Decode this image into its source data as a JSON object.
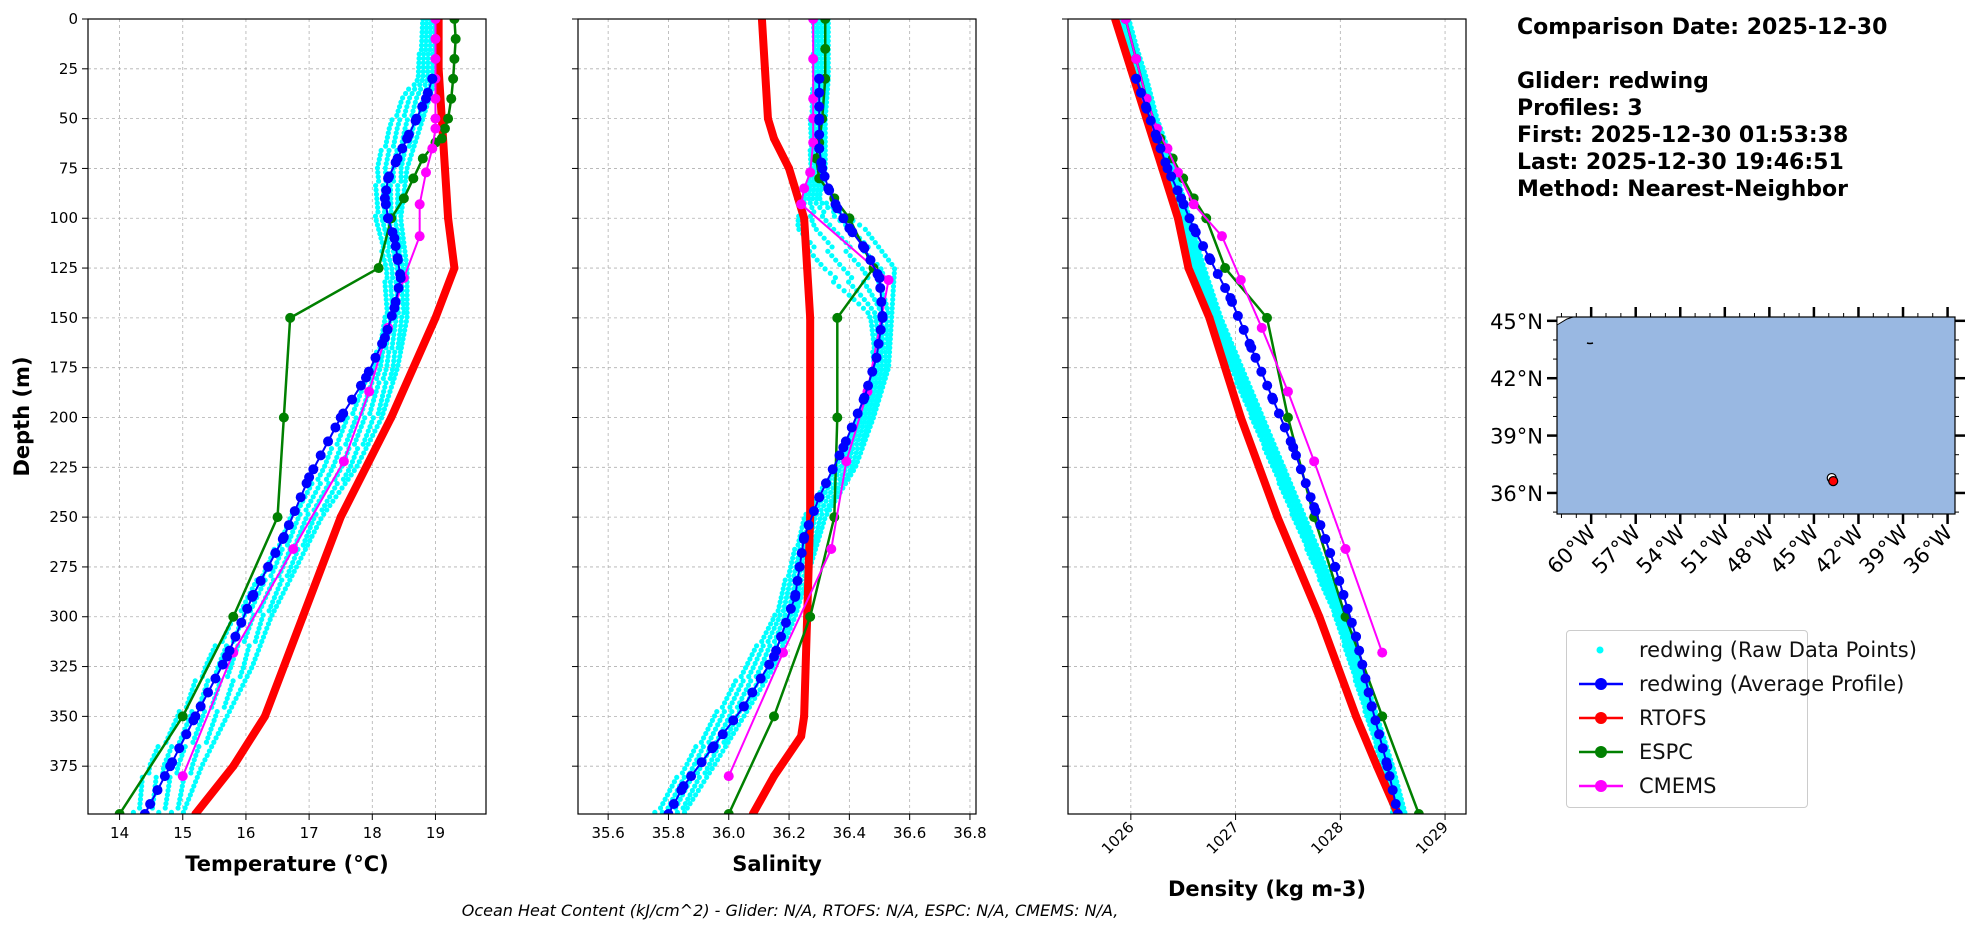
{
  "info": {
    "comparison_date": "Comparison Date: 2025-12-30",
    "glider": "Glider: redwing",
    "profiles": "Profiles: 3",
    "first": "First: 2025-12-30 01:53:38",
    "last": "Last: 2025-12-30 19:46:51",
    "method": "Method: Nearest-Neighbor"
  },
  "footer": "Ocean Heat Content (kJ/cm^2) - Glider: N/A,  RTOFS: N/A,  ESPC: N/A,  CMEMS: N/A,",
  "colors": {
    "raw": "#00ffff",
    "average": "#0000ff",
    "rtofs": "#ff0000",
    "espc": "#008000",
    "cmems": "#ff00ff",
    "ocean": "#99b8e2",
    "grid": "#b0b0b0"
  },
  "legend": [
    {
      "key": "raw",
      "label": "redwing (Raw Data Points)",
      "style": "dot"
    },
    {
      "key": "average",
      "label": "redwing (Average Profile)",
      "style": "line-marker"
    },
    {
      "key": "rtofs",
      "label": "RTOFS",
      "style": "line-marker"
    },
    {
      "key": "espc",
      "label": "ESPC",
      "style": "line-marker"
    },
    {
      "key": "cmems",
      "label": "CMEMS",
      "style": "line-marker"
    }
  ],
  "chart_data": [
    {
      "type": "line",
      "xlabel": "Temperature (°C)",
      "ylabel": "Depth (m)",
      "xlim": [
        13.5,
        19.8
      ],
      "ylim": [
        399,
        0
      ],
      "xticks": [
        14,
        15,
        16,
        17,
        18,
        19
      ],
      "yticks": [
        0,
        25,
        50,
        75,
        100,
        125,
        150,
        175,
        200,
        225,
        250,
        275,
        300,
        325,
        350,
        375
      ],
      "grid": true,
      "series": [
        {
          "name": "RTOFS",
          "key": "rtofs",
          "width": 8,
          "marker_r": 4,
          "x": [
            19.05,
            19.05,
            19.1,
            19.15,
            19.2,
            19.3,
            19.0,
            18.3,
            17.5,
            16.9,
            16.3,
            15.8,
            15.2
          ],
          "y": [
            0,
            25,
            50,
            75,
            100,
            125,
            150,
            200,
            250,
            300,
            350,
            375,
            399
          ]
        },
        {
          "name": "ESPC",
          "key": "espc",
          "width": 2.5,
          "marker_r": 5,
          "x": [
            19.3,
            19.32,
            19.3,
            19.28,
            19.25,
            19.2,
            19.15,
            19.1,
            19.0,
            18.8,
            18.65,
            18.5,
            18.3,
            18.1,
            16.7,
            16.6,
            16.5,
            15.8,
            15.0,
            14.0
          ],
          "y": [
            0,
            10,
            20,
            30,
            40,
            50,
            55,
            60,
            62,
            70,
            80,
            90,
            100,
            125,
            150,
            200,
            250,
            300,
            350,
            399
          ]
        },
        {
          "name": "CMEMS",
          "key": "cmems",
          "width": 2,
          "marker_r": 5,
          "x": [
            19.0,
            19.0,
            19.0,
            19.0,
            19.0,
            19.0,
            19.0,
            18.95,
            18.85,
            18.75,
            18.75,
            18.5,
            18.25,
            17.95,
            17.55,
            16.75,
            15.8,
            15.0
          ],
          "y": [
            0,
            10,
            20,
            30,
            40,
            50,
            55,
            65,
            77,
            93,
            109,
            130,
            155,
            187,
            222,
            266,
            318,
            380
          ]
        },
        {
          "name": "redwing (Average Profile)",
          "key": "average",
          "width": 2,
          "marker_r": 5,
          "x": [
            18.95,
            18.85,
            18.7,
            18.55,
            18.4,
            18.25,
            18.2,
            18.25,
            18.35,
            18.4,
            18.45,
            18.35,
            18.2,
            17.9,
            17.5,
            17.0,
            16.6,
            16.1,
            15.7,
            15.2,
            14.8,
            14.4
          ],
          "y": [
            30,
            40,
            50,
            60,
            70,
            80,
            90,
            100,
            110,
            120,
            130,
            145,
            160,
            180,
            200,
            230,
            260,
            290,
            320,
            350,
            375,
            399
          ]
        }
      ],
      "raw": {
        "name": "redwing (Raw Data Points)",
        "key": "raw",
        "x_lo": [
          18.8,
          18.7,
          18.45,
          18.25,
          18.05,
          18.05,
          18.2,
          18.2,
          18.0,
          17.6,
          17.2,
          16.7,
          16.3,
          15.8,
          15.3,
          14.9,
          14.4,
          14.2
        ],
        "x_hi": [
          19.05,
          19.0,
          18.9,
          18.75,
          18.55,
          18.45,
          18.55,
          18.55,
          18.4,
          18.15,
          17.75,
          17.2,
          16.8,
          16.4,
          16.1,
          15.7,
          15.3,
          15.0
        ],
        "y": [
          0,
          30,
          40,
          55,
          75,
          100,
          125,
          150,
          175,
          200,
          225,
          250,
          275,
          300,
          325,
          350,
          375,
          399
        ],
        "top_x": [
          18.8,
          18.9
        ]
      }
    },
    {
      "type": "line",
      "xlabel": "Salinity",
      "ylabel": "",
      "xlim": [
        35.5,
        36.82
      ],
      "ylim": [
        399,
        0
      ],
      "xticks": [
        35.6,
        35.8,
        36.0,
        36.2,
        36.4,
        36.6,
        36.8
      ],
      "xticklabels": [
        "35.6",
        "35.8",
        "36.0",
        "36.2",
        "36.4",
        "36.6",
        "36.8"
      ],
      "grid": true,
      "series": [
        {
          "name": "RTOFS",
          "key": "rtofs",
          "width": 8,
          "marker_r": 4,
          "x": [
            36.11,
            36.12,
            36.13,
            36.15,
            36.2,
            36.23,
            36.25,
            36.26,
            36.27,
            36.27,
            36.27,
            36.26,
            36.25,
            36.24,
            36.15,
            36.08
          ],
          "y": [
            0,
            25,
            50,
            60,
            75,
            90,
            100,
            125,
            150,
            200,
            250,
            300,
            350,
            360,
            380,
            399
          ]
        },
        {
          "name": "ESPC",
          "key": "espc",
          "width": 2.5,
          "marker_r": 5,
          "x": [
            36.32,
            36.32,
            36.32,
            36.31,
            36.3,
            36.29,
            36.3,
            36.35,
            36.4,
            36.48,
            36.36,
            36.36,
            36.35,
            36.27,
            36.15,
            36.0
          ],
          "y": [
            0,
            15,
            30,
            50,
            62,
            70,
            80,
            90,
            100,
            125,
            150,
            200,
            250,
            300,
            350,
            399
          ]
        },
        {
          "name": "CMEMS",
          "key": "cmems",
          "width": 2,
          "marker_r": 5,
          "x": [
            36.28,
            36.28,
            36.28,
            36.28,
            36.28,
            36.27,
            36.25,
            36.24,
            36.53,
            36.46,
            36.39,
            36.34,
            36.18,
            36.0
          ],
          "y": [
            0,
            20,
            40,
            50,
            62,
            77,
            85,
            93,
            131,
            187,
            222,
            266,
            318,
            380
          ]
        },
        {
          "name": "redwing (Average Profile)",
          "key": "average",
          "width": 2,
          "marker_r": 5,
          "x": [
            36.3,
            36.3,
            36.3,
            36.31,
            36.33,
            36.36,
            36.4,
            36.45,
            36.5,
            36.51,
            36.49,
            36.45,
            36.38,
            36.3,
            36.25,
            36.22,
            36.15,
            36.05,
            35.95,
            35.85,
            35.8
          ],
          "y": [
            30,
            50,
            65,
            75,
            85,
            95,
            105,
            115,
            130,
            150,
            170,
            190,
            215,
            240,
            260,
            290,
            320,
            345,
            365,
            385,
            399
          ]
        }
      ],
      "raw": {
        "name": "redwing (Raw Data Points)",
        "key": "raw",
        "x_lo": [
          36.28,
          36.28,
          36.27,
          36.27,
          36.25,
          36.22,
          36.3,
          36.47,
          36.48,
          36.43,
          36.35,
          36.25,
          36.2,
          36.15,
          36.05,
          35.95,
          35.85,
          35.75
        ],
        "x_hi": [
          36.33,
          36.33,
          36.32,
          36.32,
          36.3,
          36.45,
          36.55,
          36.54,
          36.53,
          36.48,
          36.42,
          36.32,
          36.27,
          36.22,
          36.15,
          36.05,
          35.95,
          35.85
        ],
        "y": [
          0,
          30,
          50,
          75,
          90,
          105,
          125,
          150,
          175,
          200,
          225,
          250,
          275,
          300,
          325,
          350,
          375,
          399
        ],
        "top_x": [
          36.28,
          36.33
        ]
      }
    },
    {
      "type": "line",
      "xlabel": "Density (kg m-3)",
      "ylabel": "",
      "xlim": [
        1025.4,
        1029.2
      ],
      "ylim": [
        399,
        0
      ],
      "xticks": [
        1026,
        1027,
        1028,
        1029
      ],
      "grid": true,
      "series": [
        {
          "name": "RTOFS",
          "key": "rtofs",
          "width": 8,
          "marker_r": 4,
          "x": [
            1025.85,
            1026.0,
            1026.15,
            1026.3,
            1026.45,
            1026.55,
            1026.75,
            1027.05,
            1027.4,
            1027.8,
            1028.15,
            1028.35,
            1028.55
          ],
          "y": [
            0,
            25,
            50,
            75,
            100,
            125,
            150,
            200,
            250,
            300,
            350,
            375,
            399
          ]
        },
        {
          "name": "ESPC",
          "key": "espc",
          "width": 2.5,
          "marker_r": 5,
          "x": [
            1025.95,
            1026.05,
            1026.15,
            1026.28,
            1026.4,
            1026.5,
            1026.6,
            1026.72,
            1026.9,
            1027.3,
            1027.5,
            1027.75,
            1028.05,
            1028.4,
            1028.75
          ],
          "y": [
            0,
            20,
            40,
            60,
            70,
            80,
            90,
            100,
            125,
            150,
            200,
            250,
            300,
            350,
            399
          ]
        },
        {
          "name": "CMEMS",
          "key": "cmems",
          "width": 2,
          "marker_r": 5,
          "x": [
            1025.95,
            1026.05,
            1026.15,
            1026.25,
            1026.35,
            1026.45,
            1026.6,
            1026.87,
            1027.05,
            1027.25,
            1027.5,
            1027.75,
            1028.05,
            1028.4
          ],
          "y": [
            0,
            20,
            40,
            55,
            65,
            77,
            93,
            109,
            131,
            155,
            187,
            222,
            266,
            318
          ]
        },
        {
          "name": "redwing (Average Profile)",
          "key": "average",
          "width": 2,
          "marker_r": 5,
          "x": [
            1026.05,
            1026.15,
            1026.25,
            1026.35,
            1026.48,
            1026.6,
            1026.75,
            1026.95,
            1027.15,
            1027.35,
            1027.55,
            1027.75,
            1027.95,
            1028.15,
            1028.3,
            1028.45,
            1028.55
          ],
          "y": [
            30,
            45,
            60,
            75,
            90,
            105,
            120,
            140,
            165,
            190,
            215,
            245,
            275,
            310,
            345,
            375,
            399
          ]
        }
      ],
      "raw": {
        "name": "redwing (Raw Data Points)",
        "key": "raw",
        "x_lo": [
          1025.9,
          1025.98,
          1026.05,
          1026.15,
          1026.3,
          1026.45,
          1026.6,
          1026.75,
          1026.95,
          1027.15,
          1027.35,
          1027.55,
          1027.75,
          1027.95,
          1028.1,
          1028.25,
          1028.4,
          1028.5
        ],
        "x_hi": [
          1025.98,
          1026.06,
          1026.15,
          1026.25,
          1026.42,
          1026.56,
          1026.7,
          1026.86,
          1027.06,
          1027.26,
          1027.46,
          1027.66,
          1027.86,
          1028.05,
          1028.2,
          1028.35,
          1028.5,
          1028.62
        ],
        "y": [
          0,
          15,
          30,
          50,
          75,
          100,
          125,
          150,
          175,
          200,
          225,
          250,
          275,
          300,
          325,
          350,
          375,
          399
        ],
        "top_x": [
          1025.9,
          1025.98
        ]
      }
    }
  ],
  "map": {
    "lat_ticks": [
      45,
      42,
      39,
      36
    ],
    "lat_labels": [
      "45°N",
      "42°N",
      "39°N",
      "36°N"
    ],
    "lon_ticks": [
      -60,
      -57,
      -54,
      -51,
      -48,
      -45,
      -42,
      -39,
      -36
    ],
    "lon_labels": [
      "60°W",
      "57°W",
      "54°W",
      "51°W",
      "48°W",
      "45°W",
      "42°W",
      "39°W",
      "36°W"
    ],
    "extent": {
      "lon_min": -62.3,
      "lon_max": -35.5,
      "lat_min": 34.9,
      "lat_max": 45.2
    },
    "markers": [
      {
        "lon": -43.8,
        "lat": 36.78,
        "color": "#ffffff"
      },
      {
        "lon": -43.7,
        "lat": 36.62,
        "color": "#ff0000"
      }
    ]
  }
}
